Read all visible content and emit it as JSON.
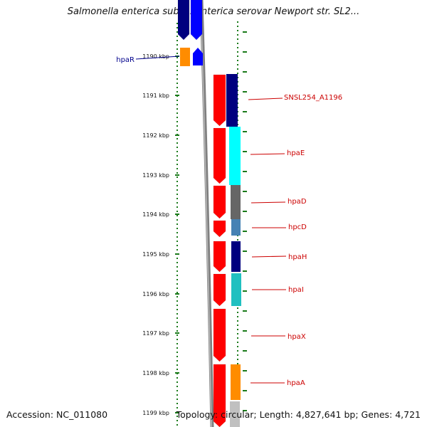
{
  "title": "Salmonella enterica subsp. enterica serovar Newport str. SL2...",
  "footer": {
    "accession": "Accession: NC_011080",
    "stats": "Topology: circular; Length: 4,827,641 bp; Genes: 4,721"
  },
  "axis": {
    "unit": "kbp",
    "ticks": [
      "1190 kbp",
      "1191 kbp",
      "1192 kbp",
      "1193 kbp",
      "1194 kbp",
      "1195 kbp",
      "1196 kbp",
      "1197 kbp",
      "1198 kbp",
      "1199 kbp"
    ]
  },
  "colors": {
    "cds_forward": "#ff0000",
    "reverse_navy": "#00007f",
    "reverse_blue": "#0000ff",
    "cyan": "#00ffff",
    "dark_grey": "#666666",
    "steel_blue": "#4682b4",
    "teal": "#20c0c0",
    "orange": "#ff8c00",
    "backbone": "#808080",
    "label_red": "#cc0000",
    "label_navy": "#00008b"
  },
  "genes": [
    {
      "name": "hpaR",
      "color": "label_navy"
    },
    {
      "name": "SNSL254_A1196",
      "color": "label_red"
    },
    {
      "name": "hpaE",
      "color": "label_red"
    },
    {
      "name": "hpaD",
      "color": "label_red"
    },
    {
      "name": "hpcD",
      "color": "label_red"
    },
    {
      "name": "hpaH",
      "color": "label_red"
    },
    {
      "name": "hpaI",
      "color": "label_red"
    },
    {
      "name": "hpaX",
      "color": "label_red"
    },
    {
      "name": "hpaA",
      "color": "label_red"
    }
  ]
}
